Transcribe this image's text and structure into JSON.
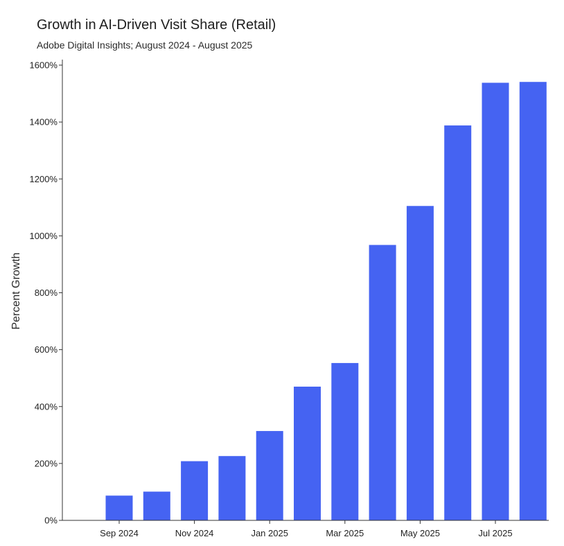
{
  "chart_data": {
    "type": "bar",
    "title": "Growth in AI-Driven Visit Share (Retail)",
    "subtitle": "Adobe Digital Insights; August 2024 - August 2025",
    "xlabel": "",
    "ylabel": "Percent Growth",
    "ylim": [
      0,
      1600
    ],
    "y_ticks": [
      0,
      200,
      400,
      600,
      800,
      1000,
      1200,
      1400,
      1600
    ],
    "y_tick_labels": [
      "0%",
      "200%",
      "400%",
      "600%",
      "800%",
      "1000%",
      "1200%",
      "1400%",
      "1600%"
    ],
    "x_tick_labels": [
      "Sep 2024",
      "Nov 2024",
      "Jan 2025",
      "Mar 2025",
      "May 2025",
      "Jul 2025"
    ],
    "categories": [
      "Sep 2024",
      "Oct 2024",
      "Nov 2024",
      "Dec 2024",
      "Jan 2025",
      "Feb 2025",
      "Mar 2025",
      "Apr 2025",
      "May 2025",
      "Jun 2025",
      "Jul 2025",
      "Aug 2025"
    ],
    "values": [
      87,
      101,
      208,
      226,
      314,
      470,
      553,
      968,
      1105,
      1388,
      1538,
      1541
    ],
    "bar_color": "#4563f2",
    "grid": false,
    "legend": "none"
  }
}
